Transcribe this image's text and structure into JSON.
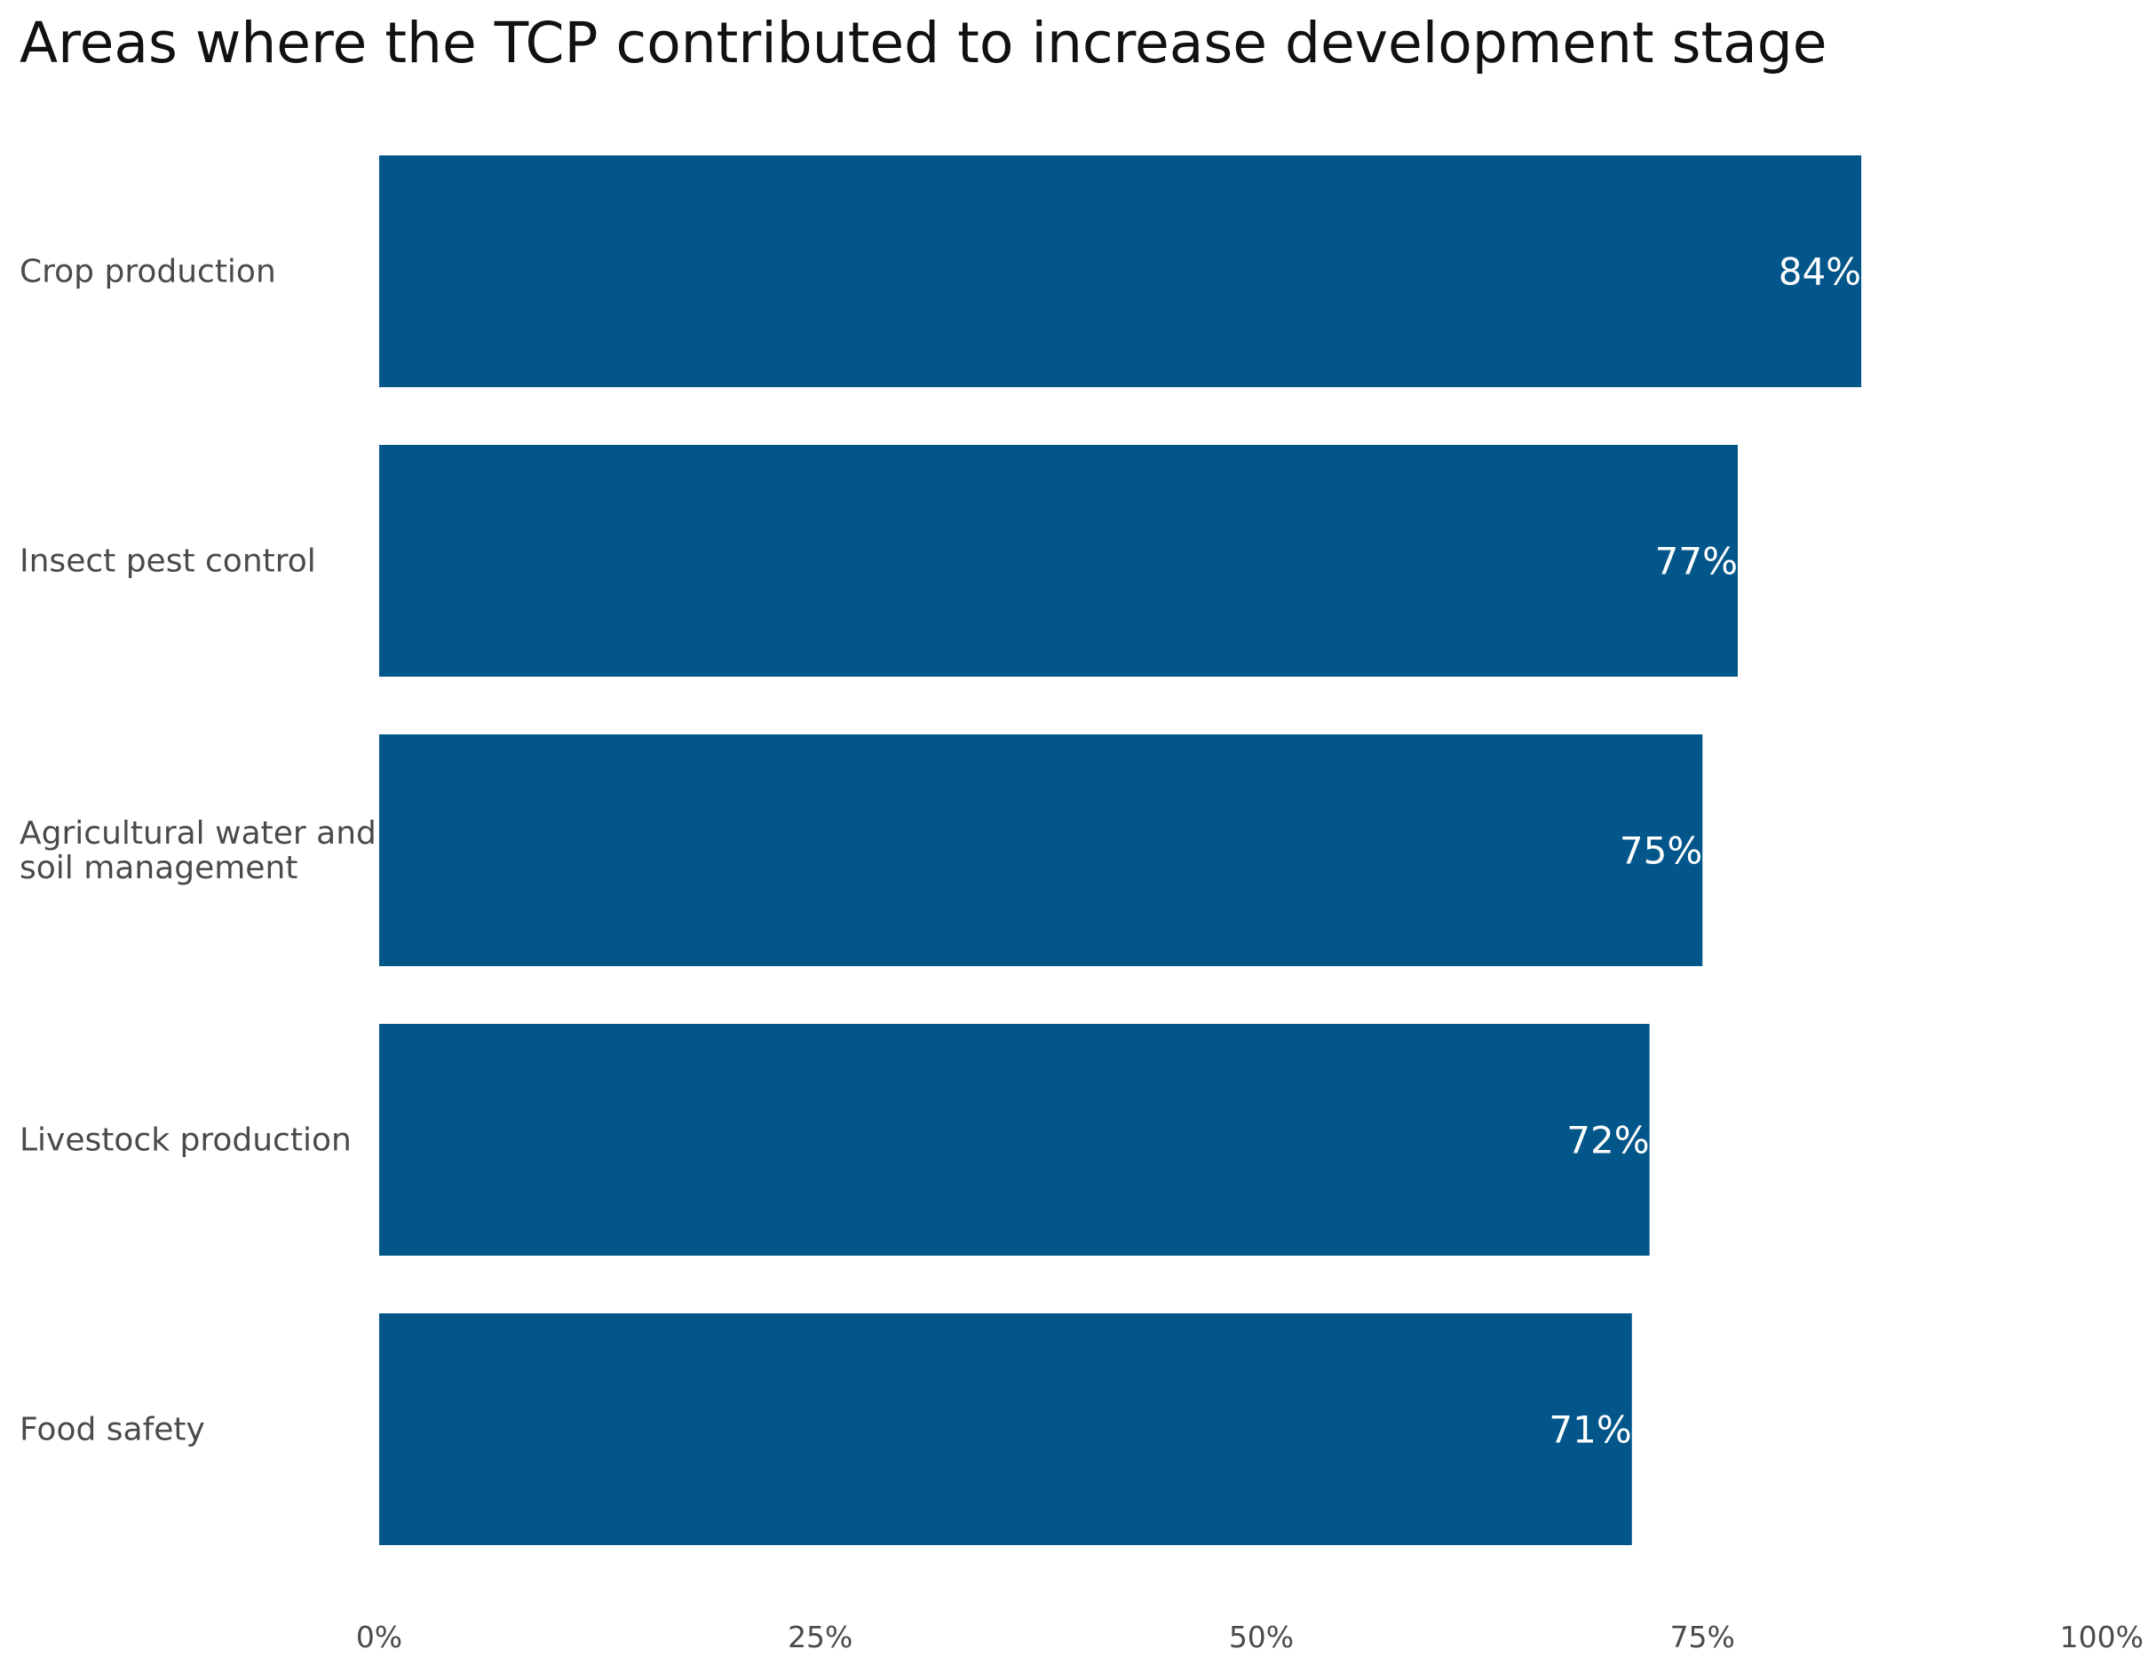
{
  "chart_data": {
    "type": "bar",
    "orientation": "horizontal",
    "title": "Areas where the TCP contributed to increase development stage",
    "categories": [
      [
        "Crop production"
      ],
      [
        "Insect pest control"
      ],
      [
        "Agricultural water and",
        "soil management"
      ],
      [
        "Livestock production"
      ],
      [
        "Food safety"
      ]
    ],
    "values": [
      84,
      77,
      75,
      72,
      71
    ],
    "value_labels": [
      "84%",
      "77%",
      "75%",
      "72%",
      "71%"
    ],
    "xlim": [
      0,
      100
    ],
    "x_ticks": [
      0,
      25,
      50,
      75,
      100
    ],
    "x_tick_labels": [
      "0%",
      "25%",
      "50%",
      "75%",
      "100%"
    ],
    "grid": false,
    "bar_color": "#02568A"
  }
}
